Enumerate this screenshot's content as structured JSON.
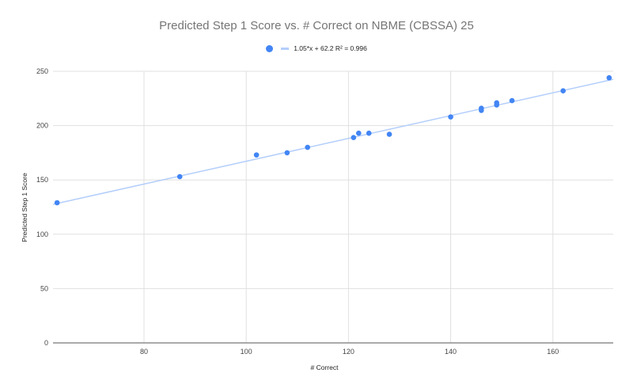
{
  "chart_data": {
    "type": "scatter",
    "title": "Predicted Step 1 Score vs. # Correct on NBME (CBSSA) 25",
    "xlabel": "# Correct",
    "ylabel": "Predicted Step 1 Score",
    "xlim": [
      62.2,
      171.8
    ],
    "ylim": [
      0,
      250
    ],
    "xticks": [
      80,
      100,
      120,
      140,
      160
    ],
    "yticks": [
      0,
      50,
      100,
      150,
      200,
      250
    ],
    "grid": true,
    "legend_position": "top",
    "series": [
      {
        "name": "Predicted Step 1 Score",
        "color": "#4285f4",
        "points": [
          [
            63,
            129
          ],
          [
            87,
            153
          ],
          [
            102,
            173
          ],
          [
            108,
            175
          ],
          [
            112,
            180
          ],
          [
            121,
            189
          ],
          [
            122,
            193
          ],
          [
            124,
            193
          ],
          [
            128,
            192
          ],
          [
            140,
            208
          ],
          [
            146,
            214
          ],
          [
            146,
            216
          ],
          [
            149,
            219
          ],
          [
            149,
            221
          ],
          [
            152,
            223
          ],
          [
            162,
            232
          ],
          [
            171,
            244
          ]
        ]
      }
    ],
    "trendline": {
      "type": "linear",
      "slope": 1.05,
      "intercept": 62.2,
      "r_squared": 0.996,
      "label": "1.05*x + 62.2 R² = 0.996",
      "color": "#b3cefb"
    }
  },
  "legend": {
    "trendline_label": "1.05*x + 62.2 R² = 0.996"
  },
  "colors": {
    "point": "#4285f4",
    "trendline": "#b3cefb",
    "grid": "#e0e0e0",
    "axis": "#555555",
    "title": "#757575"
  }
}
